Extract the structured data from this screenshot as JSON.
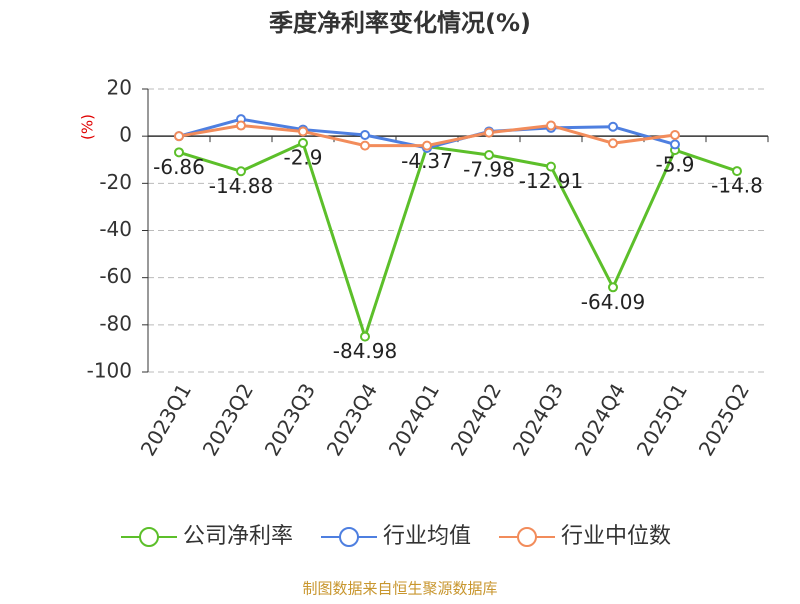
{
  "chart_data": {
    "type": "line",
    "title": "季度净利率变化情况(%)",
    "y_label": "(%)",
    "categories": [
      "2023Q1",
      "2023Q2",
      "2023Q3",
      "2023Q4",
      "2024Q1",
      "2024Q2",
      "2024Q3",
      "2024Q4",
      "2025Q1",
      "2025Q2"
    ],
    "series": [
      {
        "name": "公司净利率",
        "color": "#5cbf2a",
        "values": [
          -6.86,
          -14.88,
          -2.9,
          -84.98,
          -4.37,
          -7.98,
          -12.91,
          -64.09,
          -5.9,
          -14.8
        ],
        "data_labels": true
      },
      {
        "name": "行业均值",
        "color": "#4e7fe0",
        "values": [
          0,
          7.2,
          2.8,
          0.5,
          -5,
          2,
          3.5,
          4,
          -3.5,
          null
        ]
      },
      {
        "name": "行业中位数",
        "color": "#f28c5b",
        "values": [
          0,
          4.5,
          2,
          -4,
          -4,
          1.5,
          4.5,
          -3,
          0.5,
          null
        ]
      }
    ],
    "ylim": [
      -100,
      20
    ],
    "yticks": [
      -100,
      -80,
      -60,
      -40,
      -20,
      0,
      20
    ],
    "grid": true,
    "source": "制图数据来自恒生聚源数据库"
  }
}
